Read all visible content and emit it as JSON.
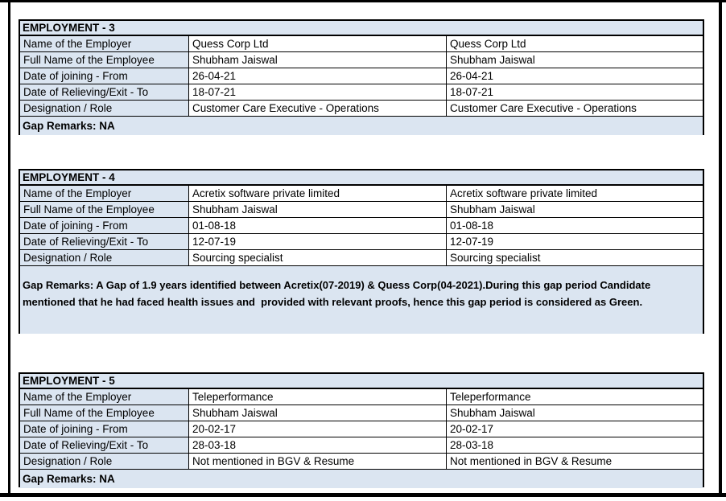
{
  "colors": {
    "shade": "#dbe5f1",
    "border": "#000000",
    "page_background": "#ffffff",
    "text": "#000000"
  },
  "employments": [
    {
      "title": "EMPLOYMENT - 3",
      "rows": [
        {
          "label": "Name of the Employer",
          "value1": "Quess Corp Ltd",
          "value2": "Quess Corp Ltd"
        },
        {
          "label": "Full Name of the Employee",
          "value1": "Shubham Jaiswal",
          "value2": "Shubham Jaiswal"
        },
        {
          "label": "Date of joining - From",
          "value1": "26-04-21",
          "value2": "26-04-21"
        },
        {
          "label": "Date of Relieving/Exit - To",
          "value1": "18-07-21",
          "value2": "18-07-21"
        },
        {
          "label": "Designation / Role",
          "value1": "Customer Care Executive - Operations",
          "value2": "Customer Care Executive - Operations"
        }
      ],
      "gap_remarks": "Gap Remarks: NA"
    },
    {
      "title": "EMPLOYMENT - 4",
      "rows": [
        {
          "label": "Name of the Employer",
          "value1": "Acretix software private limited",
          "value2": "Acretix software private limited"
        },
        {
          "label": "Full Name of the Employee",
          "value1": "Shubham Jaiswal",
          "value2": "Shubham Jaiswal"
        },
        {
          "label": "Date of joining - From",
          "value1": "01-08-18",
          "value2": "01-08-18"
        },
        {
          "label": "Date of Relieving/Exit - To",
          "value1": "12-07-19",
          "value2": "12-07-19"
        },
        {
          "label": "Designation / Role",
          "value1": "Sourcing specialist",
          "value2": "Sourcing specialist"
        }
      ],
      "gap_remarks": "Gap Remarks: A Gap of 1.9 years identified between Acretix(07-2019) & Quess Corp(04-2021).During this gap period Candidate mentioned that he had faced health issues and  provided with relevant proofs, hence this gap period is considered as Green."
    },
    {
      "title": "EMPLOYMENT - 5",
      "rows": [
        {
          "label": "Name of the Employer",
          "value1": "Teleperformance",
          "value2": "Teleperformance"
        },
        {
          "label": "Full Name of the Employee",
          "value1": "Shubham Jaiswal",
          "value2": "Shubham Jaiswal"
        },
        {
          "label": "Date of joining - From",
          "value1": "20-02-17",
          "value2": "20-02-17"
        },
        {
          "label": "Date of Relieving/Exit - To",
          "value1": "28-03-18",
          "value2": "28-03-18"
        },
        {
          "label": "Designation / Role",
          "value1": "Not mentioned in BGV & Resume",
          "value2": "Not mentioned in BGV & Resume"
        }
      ],
      "gap_remarks": "Gap Remarks: NA"
    }
  ]
}
